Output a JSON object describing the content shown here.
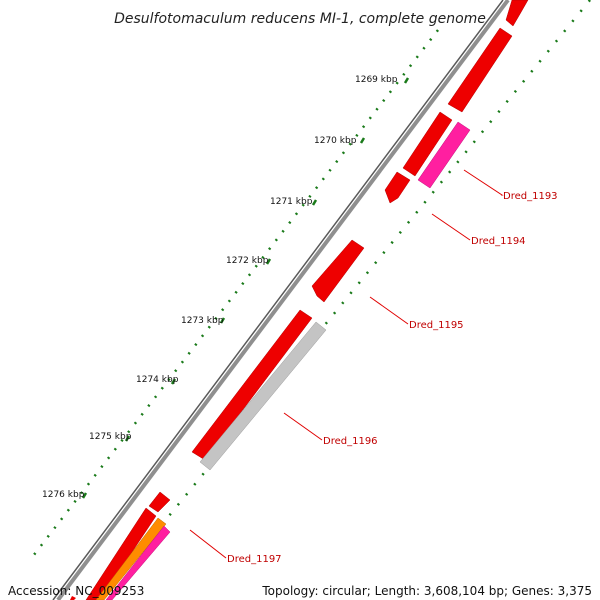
{
  "title": "Desulfotomaculum reducens MI-1, complete genome",
  "ticks": [
    "1269 kbp",
    "1270 kbp",
    "1271 kbp",
    "1272 kbp",
    "1273 kbp",
    "1274 kbp",
    "1275 kbp",
    "1276 kbp"
  ],
  "gene_labels": [
    "Dred_1193",
    "Dred_1194",
    "Dred_1195",
    "Dred_1196",
    "Dred_1197"
  ],
  "footer": {
    "accession": "Accession: NC_009253",
    "summary": "Topology: circular; Length: 3,608,104 bp; Genes: 3,375"
  },
  "colors": {
    "backbone": "#8a8a8a",
    "gene_red": "#ee0000",
    "gene_magenta": "#ff1493",
    "gene_gray": "#c4c4c4",
    "gene_orange": "#ff8c00",
    "tick_green": "#1a7a1a",
    "label_red": "#c00000"
  }
}
